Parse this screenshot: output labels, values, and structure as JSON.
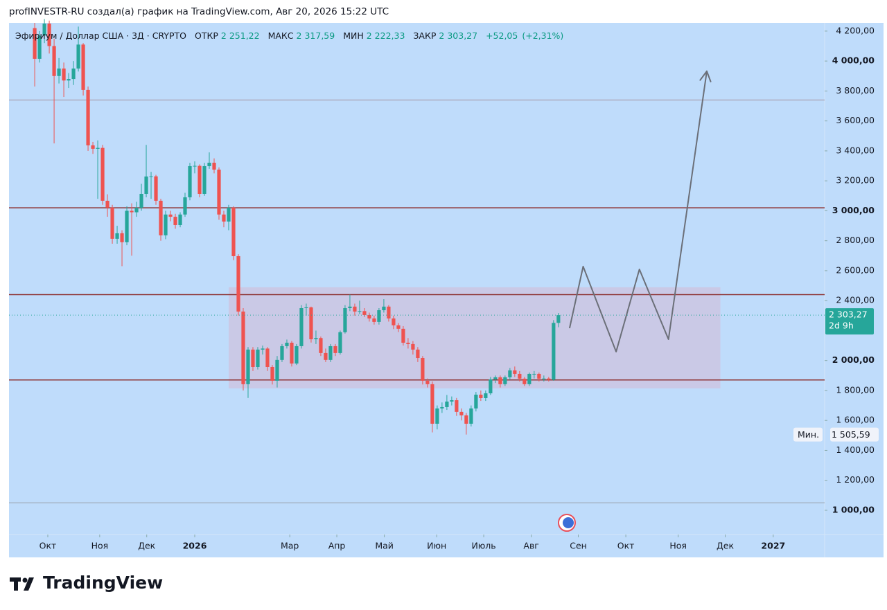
{
  "header": "profINVESTR-RU создал(а) график на TradingView.com, Авг 20, 2026 15:22 UTC",
  "brand": "TradingView",
  "chart_data": {
    "type": "candlestick",
    "symbol": "Эфириум / Доллар США · 3Д · CRYPTO",
    "ohlc_legend": [
      {
        "name": "ОТКР",
        "value": 2251.22,
        "label": "2 251,22"
      },
      {
        "name": "МАКС",
        "value": 2317.59,
        "label": "2 317,59"
      },
      {
        "name": "МИН",
        "value": 2222.33,
        "label": "2 222,33"
      },
      {
        "name": "ЗАКР",
        "value": 2303.27,
        "label": "2 303,27"
      }
    ],
    "change": {
      "value": 52.05,
      "label": "+52,05"
    },
    "change_pct": {
      "value": 2.31,
      "label": "(+2,31%)"
    },
    "up_color": "#26a69a",
    "down_color": "#ef5350",
    "open": [
      4220,
      4015,
      4170,
      4250,
      4100,
      3900,
      3950,
      3870,
      3880,
      3950,
      4110,
      3807,
      3437,
      3414,
      3420,
      3067,
      3021,
      2813,
      2850,
      2790,
      3000,
      2990,
      3020,
      3113,
      3229,
      3230,
      3067,
      2836,
      2975,
      2960,
      2905,
      2975,
      3090,
      3298,
      3300,
      3113,
      3298,
      3321,
      3275,
      2975,
      2928,
      3021,
      2697,
      2327,
      1842,
      2073,
      1957,
      2073,
      2080,
      1957,
      1865,
      2004,
      2096,
      2119,
      1980,
      2096,
      2350,
      2355,
      2142,
      2150,
      2050,
      2004,
      2096,
      2050,
      2189,
      2350,
      2360,
      2327,
      2330,
      2304,
      2281,
      2258,
      2336,
      2360,
      2281,
      2235,
      2212,
      2119,
      2110,
      2073,
      2017,
      1865,
      1842,
      1578,
      1680,
      1689,
      1726,
      1735,
      1657,
      1634,
      1578,
      1680,
      1772,
      1749,
      1781,
      1874,
      1888,
      1842,
      1888,
      1934,
      1911,
      1879,
      1842,
      1911,
      1911,
      1879,
      1880,
      1872,
      2251.22
    ],
    "high": [
      4255,
      4200,
      4280,
      4270,
      4150,
      4020,
      3990,
      3920,
      4000,
      4230,
      4120,
      3830,
      3460,
      3470,
      3440,
      3110,
      3040,
      2900,
      2870,
      3030,
      3050,
      3060,
      3180,
      3440,
      3260,
      3240,
      3080,
      3000,
      3000,
      2980,
      2990,
      3120,
      3320,
      3330,
      3310,
      3320,
      3390,
      3350,
      3290,
      3000,
      3040,
      3030,
      2710,
      2350,
      2090,
      2090,
      2090,
      2100,
      2090,
      1970,
      2030,
      2110,
      2140,
      2130,
      2110,
      2370,
      2380,
      2360,
      2200,
      2160,
      2080,
      2110,
      2110,
      2200,
      2370,
      2440,
      2380,
      2400,
      2350,
      2320,
      2300,
      2350,
      2410,
      2370,
      2300,
      2250,
      2230,
      2150,
      2130,
      2090,
      2030,
      1880,
      1860,
      1700,
      1720,
      1770,
      1760,
      1750,
      1680,
      1650,
      1700,
      1790,
      1800,
      1800,
      1890,
      1900,
      1900,
      1900,
      1950,
      1960,
      1930,
      1890,
      1920,
      1930,
      1920,
      1900,
      1890,
      2270,
      2317.59
    ],
    "low": [
      3830,
      3990,
      4120,
      4050,
      3450,
      3850,
      3760,
      3820,
      3840,
      3930,
      3770,
      3400,
      3380,
      3080,
      3040,
      2960,
      2780,
      2780,
      2630,
      2770,
      2700,
      2960,
      3000,
      3090,
      3080,
      3040,
      2800,
      2810,
      2930,
      2880,
      2890,
      2960,
      3070,
      3250,
      3090,
      3100,
      3280,
      3250,
      2940,
      2890,
      2870,
      2670,
      2300,
      1800,
      1750,
      1930,
      1940,
      2040,
      1930,
      1840,
      1820,
      1990,
      2080,
      1960,
      1970,
      2080,
      2300,
      2120,
      2110,
      2030,
      1990,
      1990,
      2030,
      2040,
      2180,
      2330,
      2300,
      2310,
      2290,
      2260,
      2240,
      2240,
      2320,
      2260,
      2210,
      2190,
      2100,
      2080,
      2040,
      1990,
      1840,
      1820,
      1520,
      1540,
      1650,
      1670,
      1700,
      1630,
      1600,
      1505.59,
      1560,
      1660,
      1730,
      1730,
      1770,
      1850,
      1820,
      1830,
      1870,
      1890,
      1860,
      1830,
      1830,
      1880,
      1860,
      1860,
      1860,
      1865,
      2222.33
    ],
    "close": [
      4015,
      4170,
      4250,
      4100,
      3900,
      3950,
      3870,
      3880,
      3950,
      4110,
      3807,
      3437,
      3414,
      3420,
      3067,
      3021,
      2813,
      2850,
      2790,
      3000,
      2990,
      3020,
      3113,
      3229,
      3230,
      3067,
      2836,
      2975,
      2960,
      2905,
      2975,
      3090,
      3298,
      3300,
      3113,
      3298,
      3321,
      3275,
      2975,
      2928,
      3021,
      2697,
      2327,
      1842,
      2073,
      1957,
      2073,
      2080,
      1957,
      1865,
      2004,
      2096,
      2119,
      1980,
      2096,
      2350,
      2355,
      2142,
      2150,
      2050,
      2004,
      2096,
      2050,
      2189,
      2350,
      2360,
      2327,
      2330,
      2304,
      2281,
      2258,
      2336,
      2360,
      2281,
      2235,
      2212,
      2119,
      2110,
      2073,
      2017,
      1865,
      1842,
      1578,
      1680,
      1689,
      1726,
      1735,
      1657,
      1634,
      1578,
      1680,
      1772,
      1749,
      1781,
      1874,
      1888,
      1842,
      1888,
      1934,
      1911,
      1879,
      1842,
      1911,
      1911,
      1879,
      1880,
      1872,
      2251.22,
      2303.27
    ],
    "xlim": [
      -5.3,
      162.9
    ],
    "xticks": [
      {
        "value": 2.7,
        "label": "Окт"
      },
      {
        "value": 13.4,
        "label": "Ноя"
      },
      {
        "value": 23.1,
        "label": "Дек"
      },
      {
        "value": 33.0,
        "label": "2026"
      },
      {
        "value": 52.6,
        "label": "Мар"
      },
      {
        "value": 62.3,
        "label": "Апр"
      },
      {
        "value": 72.1,
        "label": "Май"
      },
      {
        "value": 82.9,
        "label": "Июн"
      },
      {
        "value": 92.6,
        "label": "Июль"
      },
      {
        "value": 102.4,
        "label": "Авг"
      },
      {
        "value": 112.1,
        "label": "Сен"
      },
      {
        "value": 121.9,
        "label": "Окт"
      },
      {
        "value": 132.7,
        "label": "Ноя"
      },
      {
        "value": 142.4,
        "label": "Дек"
      },
      {
        "value": 152.3,
        "label": "2027"
      }
    ],
    "ylim": [
      838,
      4255
    ],
    "yticks": [
      {
        "value": 4200,
        "label": "4 200,00"
      },
      {
        "value": 4000,
        "label": "4 000,00"
      },
      {
        "value": 3800,
        "label": "3 800,00"
      },
      {
        "value": 3600,
        "label": "3 600,00"
      },
      {
        "value": 3400,
        "label": "3 400,00"
      },
      {
        "value": 3200,
        "label": "3 200,00"
      },
      {
        "value": 3000,
        "label": "3 000,00"
      },
      {
        "value": 2800,
        "label": "2 800,00"
      },
      {
        "value": 2600,
        "label": "2 600,00"
      },
      {
        "value": 2400,
        "label": "2 400,00"
      },
      {
        "value": 2000,
        "label": "2 000,00"
      },
      {
        "value": 1800,
        "label": "1 800,00"
      },
      {
        "value": 1600,
        "label": "1 600,00"
      },
      {
        "value": 1400,
        "label": "1 400,00"
      },
      {
        "value": 1200,
        "label": "1 200,00"
      },
      {
        "value": 1000,
        "label": "1 000,00"
      }
    ],
    "last_price_label": "2 303,27",
    "countdown": "2d 9h",
    "min_marker": {
      "name": "Мин.",
      "value": 1505.59,
      "label": "1 505,59"
    },
    "levels": [
      {
        "value": 3740,
        "color": "#a3909c"
      },
      {
        "value": 3020,
        "color": "#8e3434"
      },
      {
        "value": 2440,
        "color": "#8e3434"
      },
      {
        "value": 1870,
        "color": "#8e3434"
      },
      {
        "value": 1050,
        "color": "#9aa3ad"
      }
    ],
    "zone": {
      "x": [
        40,
        141.4
      ],
      "y": [
        1814,
        2489
      ],
      "color": "#d3b9d6"
    },
    "projection": {
      "x": [
        110.3,
        113.1,
        119.9,
        124.7,
        130.7,
        138.6
      ],
      "y": [
        2216,
        2628,
        2059,
        2609,
        2142,
        3932
      ],
      "color": "#6b6f78"
    }
  }
}
